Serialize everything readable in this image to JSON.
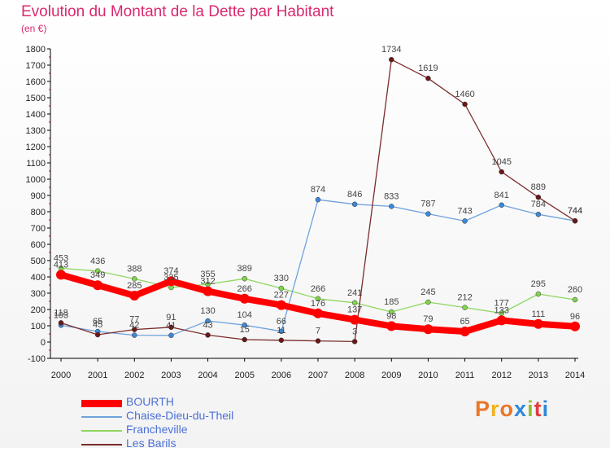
{
  "title": "Evolution du Montant de la Dette par Habitant",
  "subtitle": "(en €)",
  "logo": {
    "text": "Proxiti",
    "colors": [
      "#e9762a",
      "#f2b21b",
      "#e9762a",
      "#2f88d8",
      "#8fbf2b",
      "#e03b3b",
      "#2f88d8"
    ]
  },
  "chart_data": {
    "type": "line",
    "title": "Evolution du Montant de la Dette par Habitant",
    "ylabel": "(en €)",
    "xlabel": "",
    "ylim": [
      -100,
      1800
    ],
    "yticks": [
      -100,
      0,
      100,
      200,
      300,
      400,
      500,
      600,
      700,
      800,
      900,
      1000,
      1100,
      1200,
      1300,
      1400,
      1500,
      1600,
      1700,
      1800
    ],
    "x": [
      "2000",
      "2001",
      "2002",
      "2003",
      "2004",
      "2005",
      "2006",
      "2007",
      "2008",
      "2009",
      "2010",
      "2011",
      "2012",
      "2013",
      "2014"
    ],
    "grid": false,
    "legend": "bottom-left",
    "series": [
      {
        "name": "Francheville",
        "color": "#8ed75e",
        "marker": "#7fd44a",
        "width": 1.3,
        "values": [
          453,
          436,
          388,
          335,
          355,
          389,
          330,
          266,
          241,
          185,
          245,
          212,
          177,
          295,
          260
        ],
        "labels": [
          "453",
          "436",
          "388",
          "335",
          "355",
          "389",
          "330",
          "266",
          "241",
          "185",
          "245",
          "212",
          "177",
          "295",
          "260"
        ]
      },
      {
        "name": "Chaise-Dieu-du-Theil",
        "color": "#6fa3dd",
        "marker": "#3d88d6",
        "width": 1.3,
        "values": [
          103,
          65,
          42,
          41,
          130,
          104,
          66,
          874,
          846,
          833,
          787,
          743,
          841,
          784,
          744
        ],
        "labels": [
          "103",
          "65",
          "42",
          "41",
          "130",
          "104",
          "66",
          "874",
          "846",
          "833",
          "787",
          "743",
          "841",
          "784",
          "744"
        ]
      },
      {
        "name": "Les Barils",
        "color": "#7a2b2b",
        "marker": "#6a1717",
        "width": 1.3,
        "values": [
          118,
          45,
          77,
          91,
          43,
          15,
          11,
          7,
          3,
          1734,
          1619,
          1460,
          1045,
          889,
          744
        ],
        "labels": [
          "118",
          "45",
          "77",
          "91",
          "43",
          "15",
          "11",
          "7",
          "3",
          "1734",
          "1619",
          "1460",
          "1045",
          "889",
          "744"
        ]
      },
      {
        "name": "BOURTH",
        "color": "#ff0000",
        "marker": "#ff0000",
        "width": 8,
        "values": [
          413,
          349,
          285,
          374,
          312,
          266,
          227,
          176,
          137,
          98,
          79,
          65,
          133,
          111,
          96
        ],
        "labels": [
          "413",
          "349",
          "285",
          "374",
          "312",
          "266",
          "227",
          "176",
          "137",
          "98",
          "79",
          "65",
          "133",
          "111",
          "96"
        ]
      }
    ],
    "legend_order": [
      "BOURTH",
      "Chaise-Dieu-du-Theil",
      "Francheville",
      "Les Barils"
    ]
  }
}
